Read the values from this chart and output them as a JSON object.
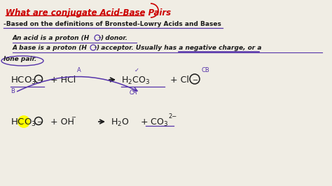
{
  "title": "What are conjugate Acid-Base Pairs",
  "title_color": "#cc0000",
  "bg_color": "#f0ede4",
  "text_color": "#1a1a1a",
  "purple_color": "#5533aa",
  "dark_color": "#222222",
  "yellow_color": "#ffff00",
  "line1": "-Based on the definitions of Bronsted-Lowry Acids and Bases",
  "line2a": "An acid is a proton (H",
  "line2b": ") donor.",
  "line3a": "A base is a proton (H",
  "line3b": ") acceptor. Usually has a negative charge, or a",
  "line4": "lone pair.",
  "label_A": "A",
  "label_B": "B",
  "label_CA": "CA",
  "label_CB": "CB"
}
